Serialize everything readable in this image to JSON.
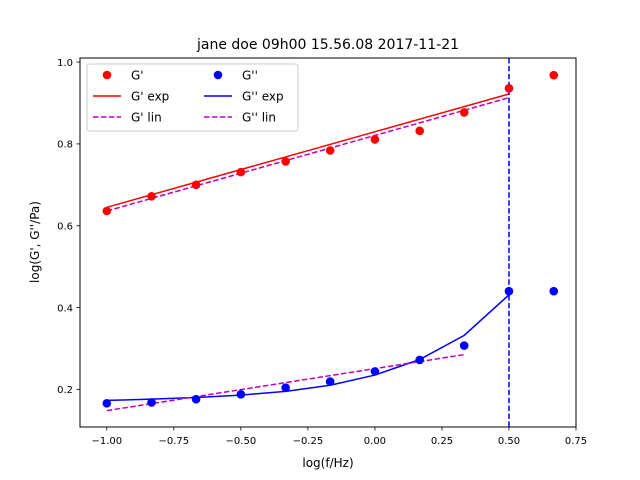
{
  "chart_data": {
    "type": "scatter",
    "title": "jane doe 09h00 15.56.08 2017-11-21",
    "xlabel": "log(f/Hz)",
    "ylabel": "log(G', G''/Pa)",
    "xlim": [
      -1.1,
      0.75
    ],
    "ylim": [
      0.108,
      1.01
    ],
    "xticks": [
      -1.0,
      -0.75,
      -0.5,
      -0.25,
      0.0,
      0.25,
      0.5,
      0.75
    ],
    "xtick_labels": [
      "−1.00",
      "−0.75",
      "−0.50",
      "−0.25",
      "0.00",
      "0.25",
      "0.50",
      "0.75"
    ],
    "yticks": [
      0.2,
      0.4,
      0.6,
      0.8,
      1.0
    ],
    "ytick_labels": [
      "0.2",
      "0.4",
      "0.6",
      "0.8",
      "1.0"
    ],
    "grid": false,
    "legend_position": "top-left",
    "vline": {
      "x": 0.5,
      "color": "#0000ff",
      "style": "dashed"
    },
    "series": [
      {
        "name": "G'",
        "kind": "points",
        "color": "#ff0000",
        "x": [
          -1.0,
          -0.833,
          -0.667,
          -0.5,
          -0.333,
          -0.167,
          0.0,
          0.167,
          0.333,
          0.5,
          0.667
        ],
        "y": [
          0.636,
          0.672,
          0.7,
          0.731,
          0.757,
          0.784,
          0.811,
          0.832,
          0.877,
          0.936,
          0.968
        ]
      },
      {
        "name": "G' exp",
        "kind": "line",
        "color": "#ff0000",
        "dash": false,
        "x": [
          -1.0,
          0.5
        ],
        "y": [
          0.645,
          0.922
        ]
      },
      {
        "name": "G' lin",
        "kind": "line",
        "color": "#bf00bf",
        "dash": true,
        "x": [
          -1.0,
          0.5
        ],
        "y": [
          0.636,
          0.913
        ]
      },
      {
        "name": "G''",
        "kind": "points",
        "color": "#0000ff",
        "x": [
          -1.0,
          -0.833,
          -0.667,
          -0.5,
          -0.333,
          -0.167,
          0.0,
          0.167,
          0.333,
          0.5,
          0.667
        ],
        "y": [
          0.166,
          0.168,
          0.176,
          0.188,
          0.204,
          0.219,
          0.244,
          0.272,
          0.307,
          0.44,
          0.44
        ]
      },
      {
        "name": "G'' exp",
        "kind": "line",
        "color": "#0000ff",
        "dash": false,
        "x": [
          -1.0,
          -0.833,
          -0.667,
          -0.5,
          -0.333,
          -0.167,
          0.0,
          0.167,
          0.333,
          0.5
        ],
        "y": [
          0.173,
          0.176,
          0.18,
          0.186,
          0.195,
          0.21,
          0.235,
          0.273,
          0.332,
          0.431
        ]
      },
      {
        "name": "G'' lin",
        "kind": "line",
        "color": "#bf00bf",
        "dash": true,
        "x": [
          -1.0,
          0.333
        ],
        "y": [
          0.148,
          0.285
        ]
      }
    ],
    "legend": [
      {
        "label": "G'",
        "series": 0
      },
      {
        "label": "G''",
        "series": 3
      },
      {
        "label": "G' exp",
        "series": 1
      },
      {
        "label": "G'' exp",
        "series": 4
      },
      {
        "label": "G' lin",
        "series": 2
      },
      {
        "label": "G'' lin",
        "series": 5
      }
    ]
  }
}
